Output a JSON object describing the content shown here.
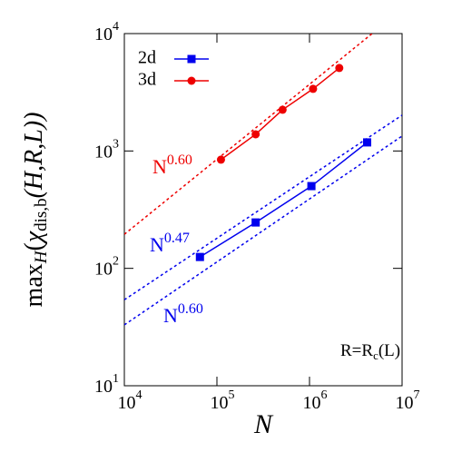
{
  "chart_data": {
    "type": "line",
    "log_x": true,
    "log_y": true,
    "xlabel": "N",
    "ylabel": {
      "main": "max",
      "sub": "H",
      "open": "(",
      "chi": "χ",
      "chi_sub": "dis,b",
      "args": "(H,R,L))"
    },
    "annotation": {
      "main": "R=R",
      "sub": "c",
      "rest": "(L)"
    },
    "xlim": [
      10000,
      10000000
    ],
    "ylim": [
      10,
      10000
    ],
    "xticks": [
      {
        "value": 10000,
        "label": "10",
        "exponent": "4"
      },
      {
        "value": 100000,
        "label": "10",
        "exponent": "5"
      },
      {
        "value": 1000000,
        "label": "10",
        "exponent": "6"
      },
      {
        "value": 10000000,
        "label": "10",
        "exponent": "7"
      }
    ],
    "yticks": [
      {
        "value": 10,
        "label": "10",
        "exponent": "1"
      },
      {
        "value": 100,
        "label": "10",
        "exponent": "2"
      },
      {
        "value": 1000,
        "label": "10",
        "exponent": "3"
      },
      {
        "value": 10000,
        "label": "10",
        "exponent": "4"
      }
    ],
    "legend": "upper left",
    "series": [
      {
        "name": "2d",
        "color": "#0000ee",
        "marker": "square",
        "x": [
          65536,
          262144,
          1048576,
          4194304
        ],
        "values": [
          125,
          246,
          502,
          1183
        ]
      },
      {
        "name": "3d",
        "color": "#ee0000",
        "marker": "circle",
        "x": [
          110592,
          262144,
          512000,
          1092727,
          2097152
        ],
        "values": [
          843,
          1387,
          2245,
          3380,
          5090
        ]
      }
    ],
    "fits": [
      {
        "label": "N",
        "exponent": "0.60",
        "color": "#ee0000",
        "x": [
          10000,
          4750000
        ],
        "values": [
          195,
          10000
        ]
      },
      {
        "label": "N",
        "exponent": "0.47",
        "color": "#0000ee",
        "x": [
          10000,
          10000000
        ],
        "values": [
          54,
          2018
        ]
      },
      {
        "label": "N",
        "exponent": "0.60",
        "color": "#0000ee",
        "x": [
          10000,
          10000000
        ],
        "values": [
          33,
          1340
        ]
      }
    ]
  }
}
